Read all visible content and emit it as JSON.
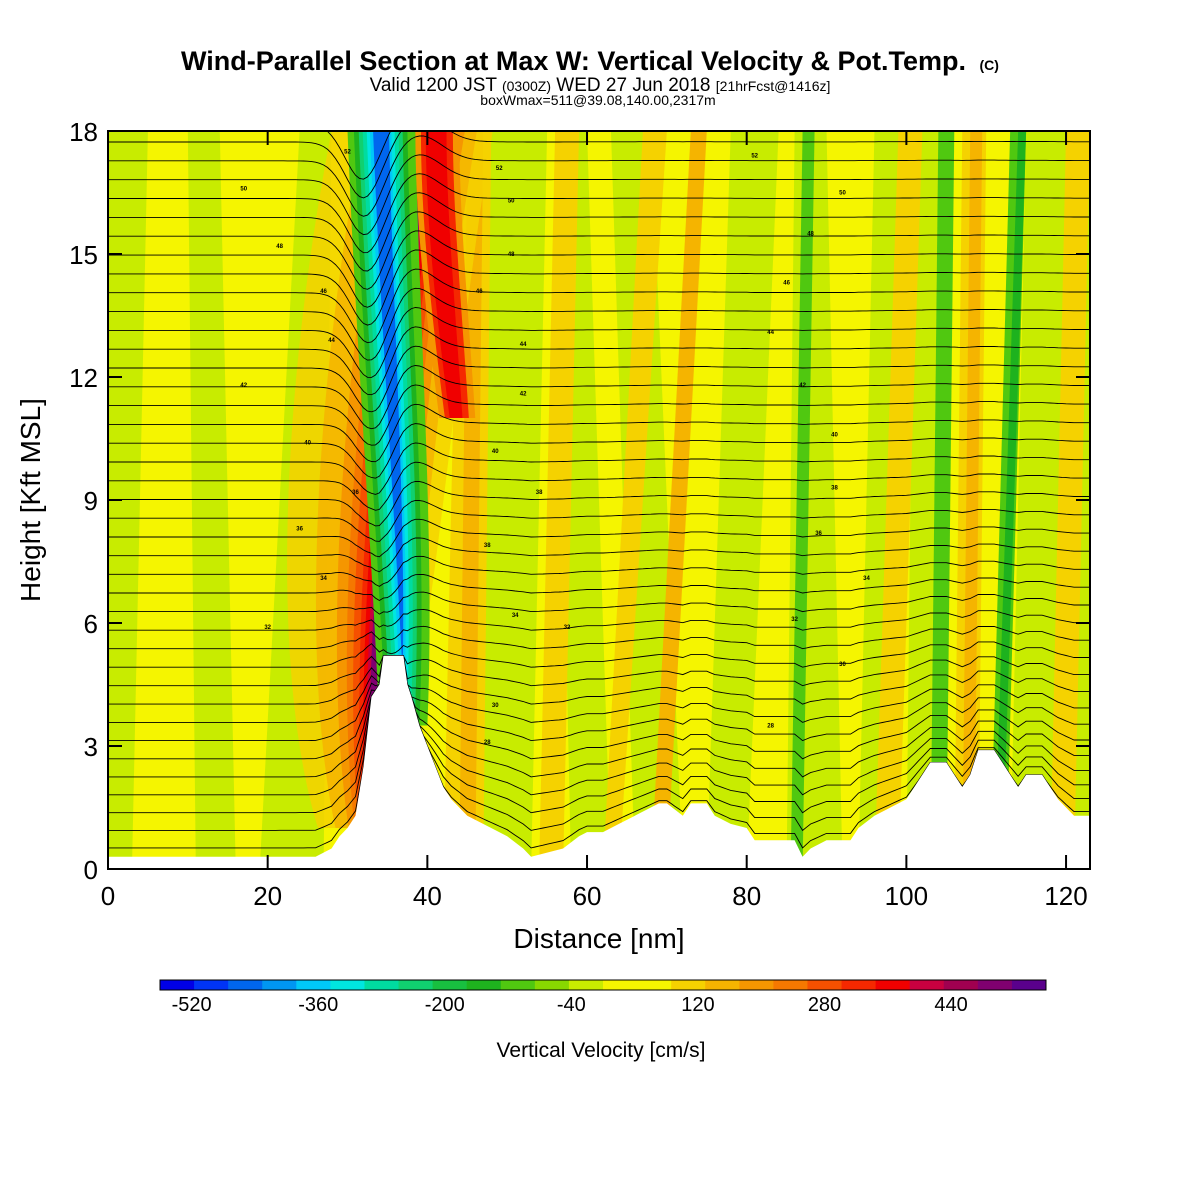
{
  "chart_data": {
    "type": "heatmap",
    "title_main": "Wind-Parallel Section at Max W: Vertical Velocity & Pot.Temp.",
    "title_mark": "(C)",
    "valid_a": "Valid 1200 JST",
    "valid_b": "(0300Z)",
    "valid_c": "WED 27 Jun 2018",
    "valid_d": "[21hrFcst@1416z]",
    "boxline": "boxWmax=511@39.08,140.00,2317m",
    "xlabel": "Distance [nm]",
    "ylabel": "Height [Kft MSL]",
    "xlim": [
      0,
      123
    ],
    "ylim": [
      0,
      18
    ],
    "xticks": [
      0,
      20,
      40,
      60,
      80,
      100,
      120
    ],
    "yticks": [
      0,
      3,
      6,
      9,
      12,
      15,
      18
    ],
    "colorbar": {
      "label": "Vertical Velocity [cm/s]",
      "min": -560,
      "max": 560,
      "step": 40,
      "tick_values": [
        -520,
        -360,
        -200,
        -40,
        120,
        280,
        440
      ],
      "colors": [
        "#0000e6",
        "#0034f5",
        "#0066ee",
        "#0096f2",
        "#00c8f8",
        "#00e6e0",
        "#00dca0",
        "#10d070",
        "#18c040",
        "#1eb21e",
        "#50c810",
        "#88d800",
        "#c8ec00",
        "#f5f500",
        "#f5f500",
        "#f5d200",
        "#f5b400",
        "#f59600",
        "#f57800",
        "#f55000",
        "#f52800",
        "#f00000",
        "#c80040",
        "#a00050",
        "#800070",
        "#5a008c"
      ]
    },
    "wind_features": [
      {
        "x_center": 32.5,
        "y_peak": 6.0,
        "value": 511
      },
      {
        "x_center": 37.0,
        "y_peak": 7.0,
        "value": -480
      }
    ],
    "terrain": [
      [
        0,
        0.3
      ],
      [
        26,
        0.3
      ],
      [
        28,
        0.5
      ],
      [
        29,
        0.8
      ],
      [
        30,
        1.0
      ],
      [
        31,
        1.3
      ],
      [
        32,
        2.5
      ],
      [
        33,
        4.2
      ],
      [
        34,
        4.5
      ],
      [
        34.5,
        5.2
      ],
      [
        37,
        5.2
      ],
      [
        37.5,
        4.5
      ],
      [
        38,
        4.2
      ],
      [
        39,
        3.5
      ],
      [
        40,
        3.0
      ],
      [
        41,
        2.5
      ],
      [
        42,
        2.0
      ],
      [
        43,
        1.7
      ],
      [
        44,
        1.5
      ],
      [
        45,
        1.3
      ],
      [
        48,
        1.0
      ],
      [
        50,
        0.8
      ],
      [
        52,
        0.5
      ],
      [
        53,
        0.3
      ],
      [
        55,
        0.4
      ],
      [
        57,
        0.5
      ],
      [
        59,
        0.8
      ],
      [
        60,
        0.9
      ],
      [
        62,
        0.9
      ],
      [
        64,
        1.1
      ],
      [
        66,
        1.3
      ],
      [
        69,
        1.6
      ],
      [
        70,
        1.6
      ],
      [
        72,
        1.3
      ],
      [
        73,
        1.6
      ],
      [
        75,
        1.6
      ],
      [
        76,
        1.3
      ],
      [
        78,
        1.1
      ],
      [
        80,
        1.0
      ],
      [
        81,
        0.7
      ],
      [
        86,
        0.7
      ],
      [
        87,
        0.3
      ],
      [
        88,
        0.5
      ],
      [
        90,
        0.7
      ],
      [
        93,
        0.7
      ],
      [
        94,
        1.0
      ],
      [
        96,
        1.3
      ],
      [
        99,
        1.6
      ],
      [
        100,
        1.7
      ],
      [
        101,
        2.0
      ],
      [
        102,
        2.3
      ],
      [
        103,
        2.6
      ],
      [
        105,
        2.6
      ],
      [
        106,
        2.3
      ],
      [
        107,
        2.0
      ],
      [
        108,
        2.3
      ],
      [
        109,
        2.9
      ],
      [
        111,
        2.9
      ],
      [
        112,
        2.6
      ],
      [
        113,
        2.3
      ],
      [
        114,
        2.0
      ],
      [
        115,
        2.3
      ],
      [
        117,
        2.3
      ],
      [
        118,
        2.0
      ],
      [
        119,
        1.7
      ],
      [
        120,
        1.5
      ],
      [
        121,
        1.3
      ],
      [
        123,
        1.3
      ]
    ],
    "theta_labels": [
      {
        "text": "52",
        "x": 30,
        "y": 17.5
      },
      {
        "text": "50",
        "x": 17,
        "y": 16.6
      },
      {
        "text": "48",
        "x": 21.5,
        "y": 15.2
      },
      {
        "text": "46",
        "x": 27,
        "y": 14.1
      },
      {
        "text": "44",
        "x": 28,
        "y": 12.9
      },
      {
        "text": "42",
        "x": 17,
        "y": 11.8
      },
      {
        "text": "40",
        "x": 25,
        "y": 10.4
      },
      {
        "text": "36",
        "x": 31,
        "y": 9.2
      },
      {
        "text": "36",
        "x": 24,
        "y": 8.3
      },
      {
        "text": "34",
        "x": 27,
        "y": 7.1
      },
      {
        "text": "32",
        "x": 20,
        "y": 5.9
      },
      {
        "text": "52",
        "x": 49,
        "y": 17.1
      },
      {
        "text": "50",
        "x": 50.5,
        "y": 16.3
      },
      {
        "text": "48",
        "x": 50.5,
        "y": 15.0
      },
      {
        "text": "46",
        "x": 46.5,
        "y": 14.1
      },
      {
        "text": "44",
        "x": 52,
        "y": 12.8
      },
      {
        "text": "42",
        "x": 52,
        "y": 11.6
      },
      {
        "text": "40",
        "x": 48.5,
        "y": 10.2
      },
      {
        "text": "38",
        "x": 54,
        "y": 9.2
      },
      {
        "text": "38",
        "x": 47.5,
        "y": 7.9
      },
      {
        "text": "34",
        "x": 51,
        "y": 6.2
      },
      {
        "text": "32",
        "x": 57.5,
        "y": 5.9
      },
      {
        "text": "30",
        "x": 48.5,
        "y": 4.0
      },
      {
        "text": "28",
        "x": 47.5,
        "y": 3.1
      },
      {
        "text": "52",
        "x": 81,
        "y": 17.4
      },
      {
        "text": "50",
        "x": 92,
        "y": 16.5
      },
      {
        "text": "48",
        "x": 88,
        "y": 15.5
      },
      {
        "text": "46",
        "x": 85,
        "y": 14.3
      },
      {
        "text": "44",
        "x": 83,
        "y": 13.1
      },
      {
        "text": "42",
        "x": 87,
        "y": 11.8
      },
      {
        "text": "40",
        "x": 91,
        "y": 10.6
      },
      {
        "text": "38",
        "x": 91,
        "y": 9.3
      },
      {
        "text": "36",
        "x": 89,
        "y": 8.2
      },
      {
        "text": "34",
        "x": 95,
        "y": 7.1
      },
      {
        "text": "32",
        "x": 86,
        "y": 6.1
      },
      {
        "text": "30",
        "x": 92,
        "y": 5.0
      },
      {
        "text": "28",
        "x": 83,
        "y": 3.5
      }
    ]
  }
}
